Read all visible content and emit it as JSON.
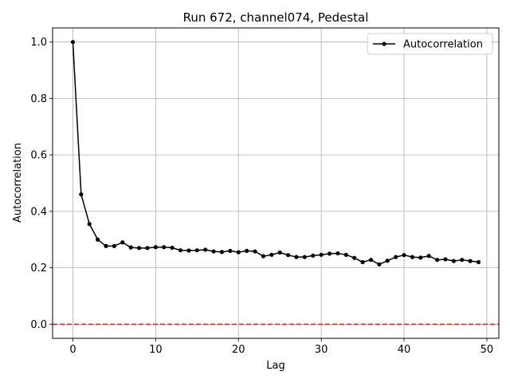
{
  "chart_data": {
    "type": "line",
    "title": "Run 672, channel074, Pedestal",
    "xlabel": "Lag",
    "ylabel": "Autocorrelation",
    "xlim": [
      -2.45,
      51.45
    ],
    "ylim": [
      -0.05,
      1.05
    ],
    "xticks": [
      0,
      10,
      20,
      30,
      40,
      50
    ],
    "yticks": [
      0.0,
      0.2,
      0.4,
      0.6,
      0.8,
      1.0
    ],
    "grid": true,
    "legend_position": "top-right",
    "reference_line": {
      "y": 0.0,
      "color": "#d62728",
      "style": "dashed"
    },
    "series": [
      {
        "name": "Autocorrelation",
        "color": "#000000",
        "marker": "circle",
        "x": [
          0,
          1,
          2,
          3,
          4,
          5,
          6,
          7,
          8,
          9,
          10,
          11,
          12,
          13,
          14,
          15,
          16,
          17,
          18,
          19,
          20,
          21,
          22,
          23,
          24,
          25,
          26,
          27,
          28,
          29,
          30,
          31,
          32,
          33,
          34,
          35,
          36,
          37,
          38,
          39,
          40,
          41,
          42,
          43,
          44,
          45,
          46,
          47,
          48,
          49
        ],
        "y": [
          1.0,
          0.46,
          0.355,
          0.3,
          0.277,
          0.277,
          0.29,
          0.272,
          0.27,
          0.27,
          0.273,
          0.273,
          0.271,
          0.262,
          0.261,
          0.262,
          0.264,
          0.258,
          0.256,
          0.26,
          0.255,
          0.26,
          0.258,
          0.241,
          0.246,
          0.254,
          0.245,
          0.238,
          0.238,
          0.243,
          0.246,
          0.25,
          0.251,
          0.246,
          0.235,
          0.22,
          0.228,
          0.212,
          0.225,
          0.238,
          0.245,
          0.238,
          0.236,
          0.242,
          0.228,
          0.23,
          0.224,
          0.228,
          0.224,
          0.22
        ]
      }
    ]
  }
}
